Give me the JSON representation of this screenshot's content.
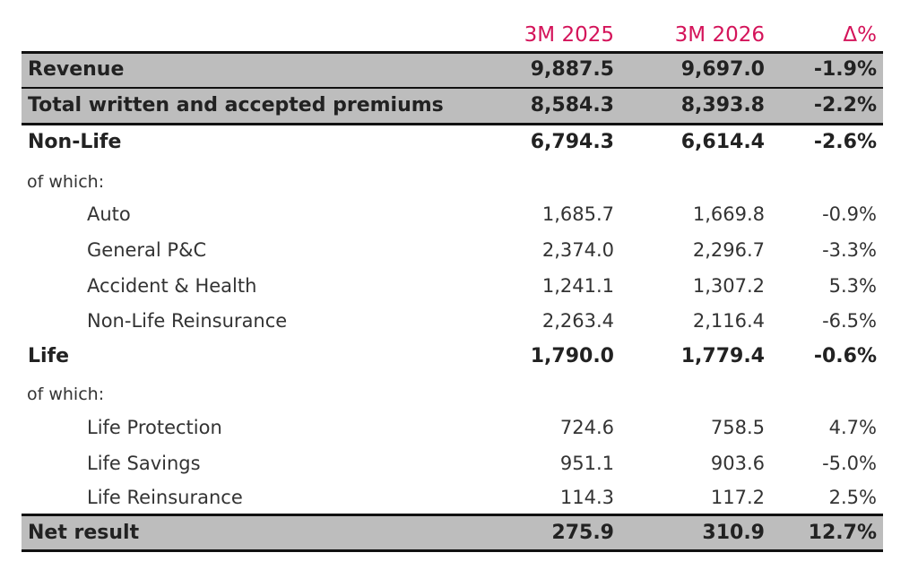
{
  "header": {
    "columns": [
      "3M 2025",
      "3M 2026",
      "Δ%"
    ]
  },
  "rows": [
    {
      "label": "Revenue",
      "cells": [
        "9,887.5",
        "9,697.0",
        "-1.9%"
      ],
      "style": "shaded"
    },
    {
      "label": "Total written and accepted premiums",
      "cells": [
        "8,584.3",
        "8,393.8",
        "-2.2%"
      ],
      "style": "shaded"
    },
    {
      "label": "Non-Life",
      "cells": [
        "6,794.3",
        "6,614.4",
        "-2.6%"
      ],
      "style": "bold"
    },
    {
      "label": "of which:",
      "cells": [],
      "style": "note"
    },
    {
      "label": "Auto",
      "cells": [
        "1,685.7",
        "1,669.8",
        "-0.9%"
      ],
      "style": "indent"
    },
    {
      "label": "General P&C",
      "cells": [
        "2,374.0",
        "2,296.7",
        "-3.3%"
      ],
      "style": "indent"
    },
    {
      "label": "Accident & Health",
      "cells": [
        "1,241.1",
        "1,307.2",
        "5.3%"
      ],
      "style": "indent"
    },
    {
      "label": "Non-Life Reinsurance",
      "cells": [
        "2,263.4",
        "2,116.4",
        "-6.5%"
      ],
      "style": "indent"
    },
    {
      "label": "Life",
      "cells": [
        "1,790.0",
        "1,779.4",
        "-0.6%"
      ],
      "style": "bold"
    },
    {
      "label": "of which:",
      "cells": [],
      "style": "note"
    },
    {
      "label": "Life Protection",
      "cells": [
        "724.6",
        "758.5",
        "4.7%"
      ],
      "style": "indent"
    },
    {
      "label": "Life Savings",
      "cells": [
        "951.1",
        "903.6",
        "-5.0%"
      ],
      "style": "indent"
    },
    {
      "label": "Life Reinsurance",
      "cells": [
        "114.3",
        "117.2",
        "2.5%"
      ],
      "style": "indent"
    },
    {
      "label": "Net result",
      "cells": [
        "275.9",
        "310.9",
        "12.7%"
      ],
      "style": "shaded"
    }
  ]
}
